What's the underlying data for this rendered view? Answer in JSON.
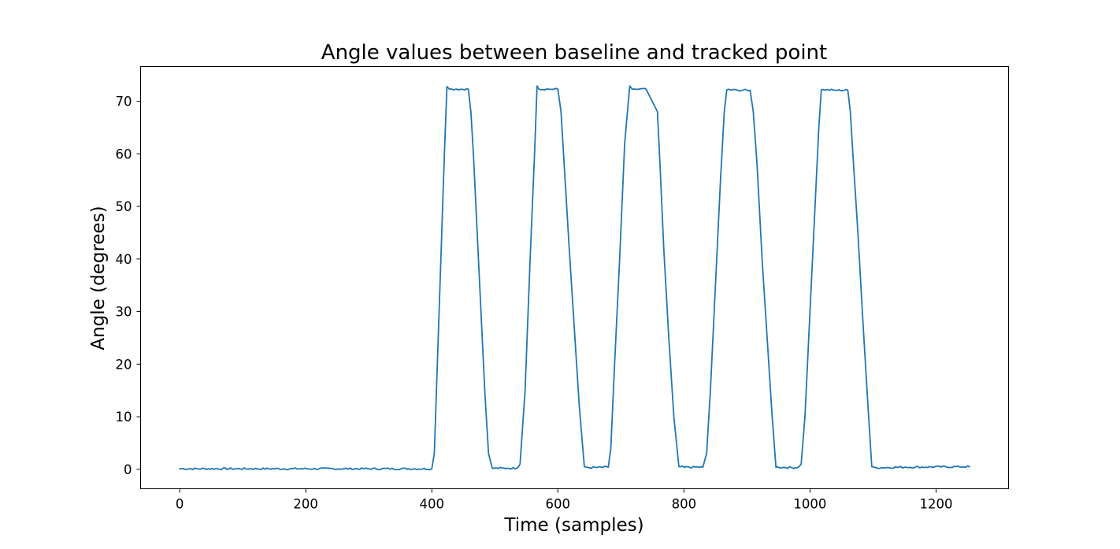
{
  "chart_data": {
    "type": "line",
    "title": "Angle values between baseline and tracked point",
    "xlabel": "Time (samples)",
    "ylabel": "Angle (degrees)",
    "xlim": [
      -62,
      1315
    ],
    "ylim": [
      -3.7,
      76.6
    ],
    "xticks": [
      0,
      200,
      400,
      600,
      800,
      1000,
      1200
    ],
    "yticks": [
      0,
      10,
      20,
      30,
      40,
      50,
      60,
      70
    ],
    "grid": false,
    "series": [
      {
        "color": "#1f77b4",
        "x": [
          0,
          400,
          404,
          413,
          420,
          424,
          428,
          440,
          458,
          462,
          466,
          472,
          478,
          484,
          490,
          496,
          520,
          535,
          540,
          548,
          556,
          563,
          567,
          570,
          585,
          600,
          605,
          610,
          618,
          626,
          634,
          642,
          650,
          680,
          684,
          690,
          698,
          706,
          714,
          718,
          722,
          740,
          758,
          762,
          768,
          776,
          784,
          792,
          800,
          830,
          836,
          842,
          850,
          858,
          864,
          868,
          885,
          905,
          910,
          916,
          924,
          932,
          940,
          946,
          980,
          986,
          992,
          1000,
          1008,
          1014,
          1018,
          1040,
          1060,
          1064,
          1068,
          1076,
          1084,
          1092,
          1098,
          1105,
          1150,
          1253
        ],
        "values": [
          0.1,
          0.1,
          3,
          35,
          60,
          72.8,
          72.3,
          72.3,
          72.3,
          68,
          60,
          45,
          30,
          15,
          3,
          0.2,
          0.2,
          0.2,
          1,
          15,
          40,
          60,
          72.9,
          72.3,
          72.3,
          72.3,
          68,
          58,
          42,
          27,
          12,
          0.5,
          0.3,
          0.4,
          4,
          20,
          40,
          62,
          72.9,
          72.3,
          72.3,
          72.3,
          68,
          58,
          42,
          25,
          10,
          0.5,
          0.4,
          0.4,
          3,
          15,
          35,
          55,
          68,
          72.2,
          72.1,
          72.1,
          68,
          58,
          40,
          25,
          10,
          0.4,
          0.3,
          1,
          10,
          30,
          50,
          65,
          72.2,
          72.1,
          72.1,
          68,
          60,
          45,
          28,
          12,
          0.5,
          0.3,
          0.4,
          0.5
        ]
      }
    ]
  }
}
